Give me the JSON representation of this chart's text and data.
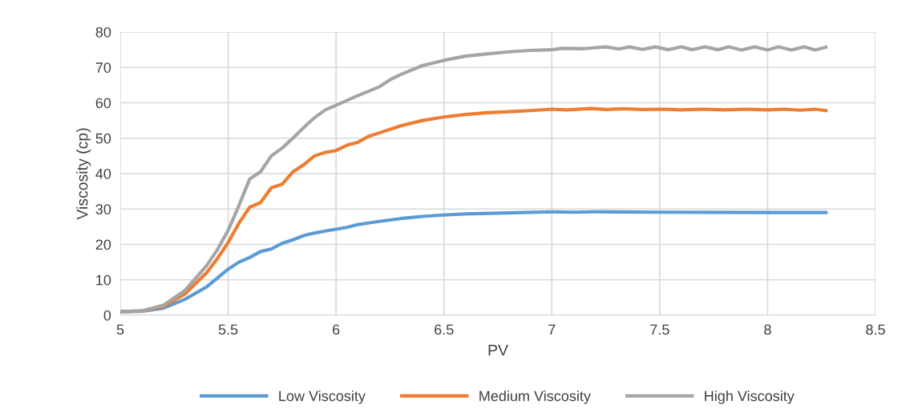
{
  "chart_data": {
    "type": "line",
    "xlabel": "PV",
    "ylabel": "Viscosity (cp)",
    "xlim": [
      5,
      8.5
    ],
    "xticks": [
      5,
      5.5,
      6,
      6.5,
      7,
      7.5,
      8,
      8.5
    ],
    "ylim": [
      0,
      80
    ],
    "yticks": [
      0,
      10,
      20,
      30,
      40,
      50,
      60,
      70,
      80
    ],
    "grid": true,
    "legend": "bottom",
    "marker": "none",
    "line_style": "solid",
    "series": [
      {
        "name": "Low Viscosity",
        "color": "#5b9bd5",
        "x": [
          5,
          5.1,
          5.2,
          5.3,
          5.4,
          5.45,
          5.5,
          5.55,
          5.6,
          5.65,
          5.7,
          5.75,
          5.8,
          5.85,
          5.9,
          5.95,
          6.0,
          6.05,
          6.1,
          6.2,
          6.3,
          6.4,
          6.5,
          6.6,
          6.8,
          7.0,
          7.1,
          7.2,
          7.5,
          8.0,
          8.27
        ],
        "values": [
          1,
          1.1,
          2,
          4.5,
          8,
          10.5,
          13,
          15,
          16.3,
          18,
          18.7,
          20.3,
          21.3,
          22.5,
          23.2,
          23.8,
          24.3,
          24.8,
          25.6,
          26.5,
          27.3,
          27.9,
          28.3,
          28.6,
          28.9,
          29.2,
          29.1,
          29.2,
          29.1,
          29.0,
          29.0
        ]
      },
      {
        "name": "Medium Viscosity",
        "color": "#ed7d31",
        "x": [
          5,
          5.1,
          5.2,
          5.3,
          5.4,
          5.45,
          5.5,
          5.55,
          5.6,
          5.65,
          5.7,
          5.75,
          5.8,
          5.85,
          5.9,
          5.95,
          6.0,
          6.05,
          6.1,
          6.15,
          6.2,
          6.3,
          6.4,
          6.5,
          6.6,
          6.7,
          6.8,
          6.9,
          7.0,
          7.07,
          7.18,
          7.25,
          7.33,
          7.42,
          7.52,
          7.6,
          7.7,
          7.8,
          7.9,
          8.0,
          8.08,
          8.15,
          8.22,
          8.27
        ],
        "values": [
          1,
          1.2,
          2.5,
          6,
          12,
          16,
          20.5,
          26,
          30.5,
          31.8,
          36,
          37,
          40.5,
          42.5,
          45,
          46,
          46.5,
          48,
          48.8,
          50.5,
          51.5,
          53.5,
          55,
          56,
          56.7,
          57.2,
          57.5,
          57.8,
          58.2,
          58,
          58.4,
          58.1,
          58.3,
          58.1,
          58.2,
          58.0,
          58.2,
          58.0,
          58.2,
          58.0,
          58.2,
          57.9,
          58.2,
          57.8
        ]
      },
      {
        "name": "High Viscosity",
        "color": "#a5a5a5",
        "x": [
          5,
          5.1,
          5.2,
          5.3,
          5.4,
          5.45,
          5.5,
          5.55,
          5.6,
          5.65,
          5.7,
          5.75,
          5.8,
          5.85,
          5.9,
          5.95,
          6.0,
          6.1,
          6.2,
          6.25,
          6.3,
          6.4,
          6.5,
          6.6,
          6.7,
          6.8,
          6.9,
          7.0,
          7.05,
          7.15,
          7.25,
          7.31,
          7.36,
          7.42,
          7.48,
          7.54,
          7.6,
          7.65,
          7.71,
          7.77,
          7.82,
          7.88,
          7.94,
          8.0,
          8.05,
          8.11,
          8.17,
          8.22,
          8.27
        ],
        "values": [
          1,
          1.2,
          2.8,
          7,
          14,
          18.5,
          24,
          31,
          38.5,
          40.5,
          45,
          47.2,
          50,
          53,
          55.8,
          58,
          59.3,
          62,
          64.5,
          66.5,
          68,
          70.5,
          72,
          73.2,
          73.8,
          74.4,
          74.8,
          75,
          75.4,
          75.3,
          75.8,
          75.2,
          75.8,
          75.1,
          75.8,
          75.0,
          75.8,
          75.0,
          75.8,
          75.0,
          75.8,
          74.9,
          75.8,
          74.9,
          75.8,
          74.9,
          75.8,
          74.9,
          75.7
        ]
      }
    ]
  }
}
